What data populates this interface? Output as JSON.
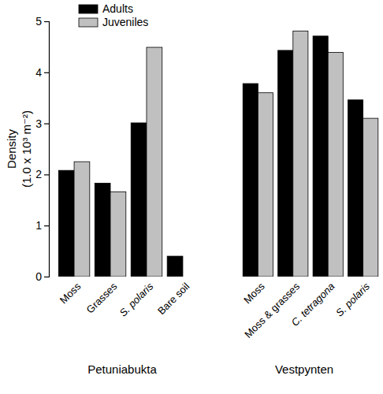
{
  "chart_data": [
    {
      "type": "bar",
      "title": "Petuniabukta",
      "y_label": [
        "Density",
        "(1.0 x 10³ m⁻²)"
      ],
      "categories": [
        "Moss",
        "Grasses",
        "S. polaris",
        "Bare soil"
      ],
      "series": [
        {
          "name": "Adults",
          "color": "#000000",
          "values": [
            2.08,
            1.83,
            3.01,
            0.4
          ]
        },
        {
          "name": "Juveniles",
          "color": "#c0c0c0",
          "values": [
            2.25,
            1.66,
            4.49,
            0
          ]
        }
      ],
      "ylim": [
        0,
        5
      ],
      "yticks": [
        0,
        1,
        2,
        3,
        4,
        5
      ],
      "grid": false,
      "legend": "upper left"
    },
    {
      "type": "bar",
      "title": "Vestpynten",
      "categories": [
        "Moss",
        "Moss & grasses",
        "C. tetragona",
        "S. polaris"
      ],
      "series": [
        {
          "color": "#000000",
          "values": [
            3.78,
            4.43,
            4.71,
            3.46
          ]
        },
        {
          "color": "#c0c0c0",
          "values": [
            3.6,
            4.81,
            4.39,
            3.1
          ]
        }
      ],
      "ylim": [
        0,
        5
      ],
      "grid": false,
      "tick_labels": false
    }
  ]
}
